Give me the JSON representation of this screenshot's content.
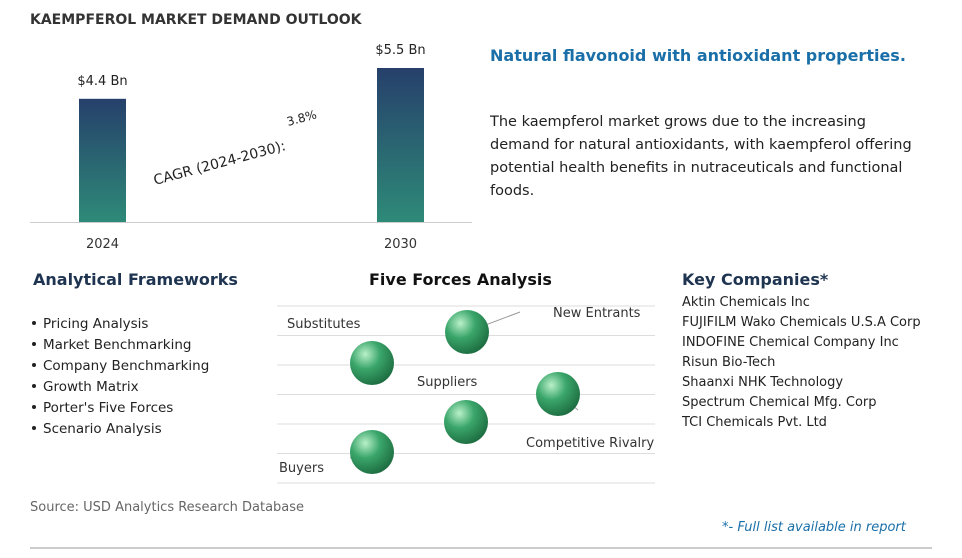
{
  "chart_data": {
    "type": "bar",
    "title": "KAEMPFEROL MARKET DEMAND OUTLOOK",
    "categories": [
      "2024",
      "2030"
    ],
    "values": [
      4.4,
      5.5
    ],
    "value_labels": [
      "$4.4 Bn",
      "$5.5 Bn"
    ],
    "annotation": "CAGR (2024-2030):",
    "annotation_value": "3.8%"
  },
  "summary": {
    "heading": "Natural flavonoid with antioxidant properties.",
    "text": "The kaempferol market grows due to the increasing demand for natural antioxidants, with kaempferol offering potential health benefits in nutraceuticals and functional foods."
  },
  "frameworks": {
    "title": "Analytical Frameworks",
    "items": [
      "Pricing Analysis",
      "Market Benchmarking",
      "Company Benchmarking",
      "Growth Matrix",
      "Porter's Five Forces",
      "Scenario Analysis"
    ]
  },
  "five_forces": {
    "title": "Five Forces Analysis",
    "labels": [
      "Substitutes",
      "New Entrants",
      "Suppliers",
      "Competitive Rivalry",
      "Buyers"
    ]
  },
  "companies": {
    "title": "Key Companies*",
    "items": [
      "Aktin Chemicals Inc",
      "FUJIFILM Wako Chemicals U.S.A Corp",
      "INDOFINE Chemical Company Inc",
      "Risun Bio-Tech",
      "Shaanxi NHK Technology",
      "Spectrum Chemical Mfg. Corp",
      "TCI Chemicals Pvt. Ltd"
    ]
  },
  "footer": {
    "source": "Source: USD Analytics Research Database",
    "note": "*- Full list available in report"
  }
}
